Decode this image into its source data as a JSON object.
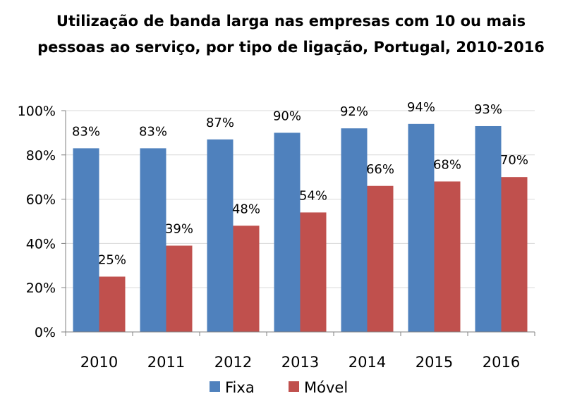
{
  "chart_data": {
    "type": "bar",
    "title_line1": "Utilização de banda larga nas empresas com 10 ou mais",
    "title_line2": "pessoas ao serviço, por tipo de ligação, Portugal, 2010-2016",
    "categories": [
      "2010",
      "2011",
      "2012",
      "2013",
      "2014",
      "2015",
      "2016"
    ],
    "series": [
      {
        "name": "Fixa",
        "color": "#4F81BD",
        "values": [
          83,
          83,
          87,
          90,
          92,
          94,
          93
        ],
        "labels": [
          "83%",
          "83%",
          "87%",
          "90%",
          "92%",
          "94%",
          "93%"
        ]
      },
      {
        "name": "Móvel",
        "color": "#C0504D",
        "values": [
          25,
          39,
          48,
          54,
          66,
          68,
          70
        ],
        "labels": [
          "25%",
          "39%",
          "48%",
          "54%",
          "66%",
          "68%",
          "70%"
        ]
      }
    ],
    "ylim": [
      0,
      100
    ],
    "yticks": [
      0,
      20,
      40,
      60,
      80,
      100
    ],
    "ytick_labels": [
      "0%",
      "20%",
      "40%",
      "60%",
      "80%",
      "100%"
    ],
    "grid": true,
    "legend_position": "bottom"
  }
}
